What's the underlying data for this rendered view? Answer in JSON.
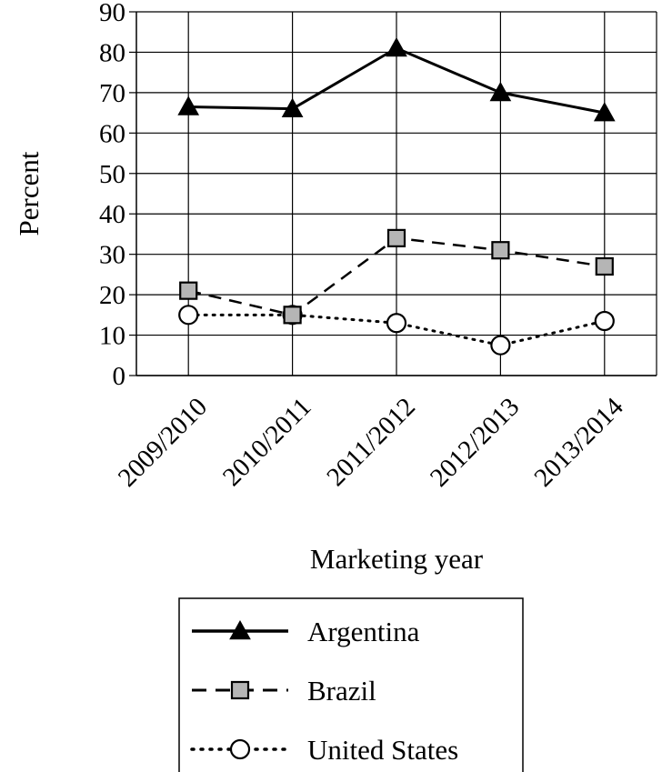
{
  "chart_data": {
    "type": "line",
    "title": "",
    "xlabel": "Marketing year",
    "ylabel": "Percent",
    "ylim": [
      0,
      90
    ],
    "yticks": [
      0,
      10,
      20,
      30,
      40,
      50,
      60,
      70,
      80,
      90
    ],
    "grid": true,
    "legend_position": "bottom",
    "categories": [
      "2009/2010",
      "2010/2011",
      "2011/2012",
      "2012/2013",
      "2013/2014"
    ],
    "series": [
      {
        "name": "Argentina",
        "values": [
          66.5,
          66,
          81,
          70,
          65
        ],
        "marker": "triangle-filled",
        "line": "solid",
        "color": "#000000"
      },
      {
        "name": "Brazil",
        "values": [
          21,
          15,
          34,
          31,
          27
        ],
        "marker": "square-gray",
        "line": "dashed",
        "color": "#000000"
      },
      {
        "name": "United States",
        "values": [
          15,
          15,
          13,
          7.5,
          13.5
        ],
        "marker": "circle-open",
        "line": "dotted",
        "color": "#000000"
      }
    ]
  }
}
